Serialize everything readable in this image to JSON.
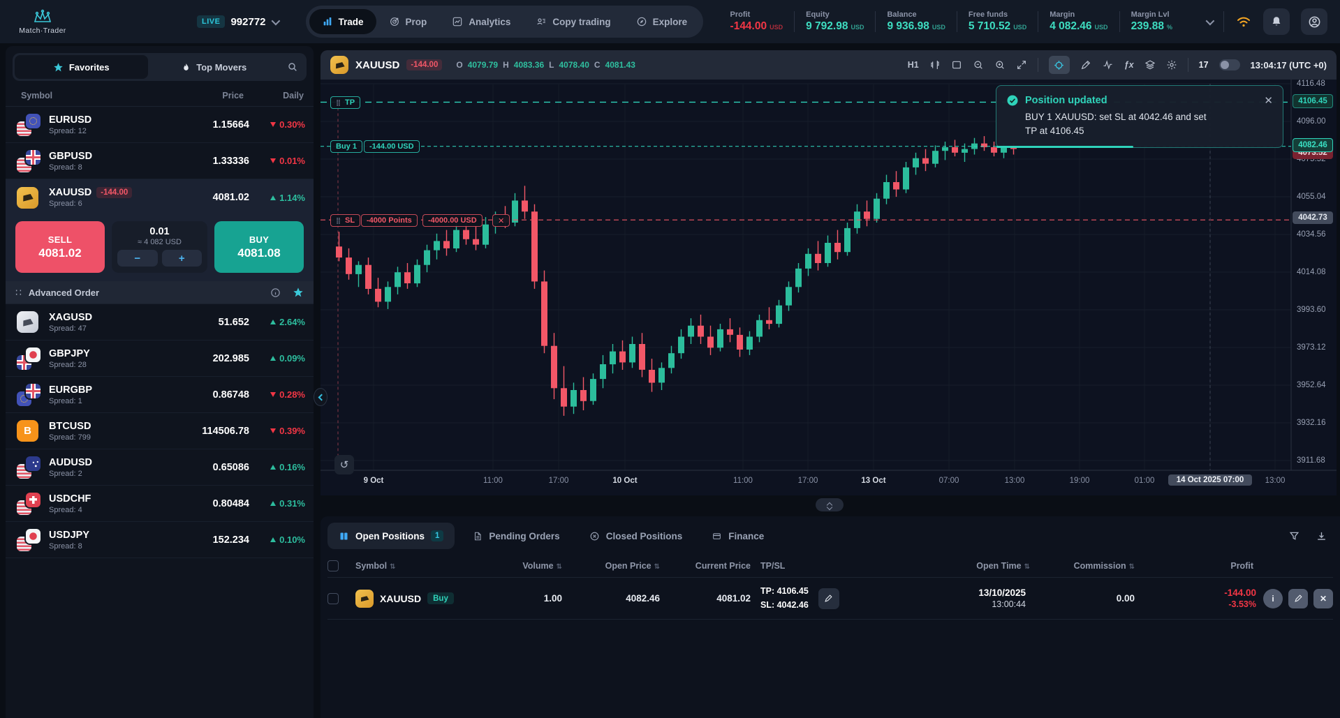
{
  "colors": {
    "positive": "#2fd3ba",
    "negative": "#f23645",
    "accent_cyan": "#35bfe0",
    "buy_button": "#17a392",
    "sell_button": "#ee5168",
    "candle_up": "#2cbd9c",
    "candle_down": "#f25767"
  },
  "header": {
    "brand": "Match·Trader",
    "live_badge": "LIVE",
    "account_number": "992772",
    "nav": [
      {
        "label": "Trade",
        "icon": "trade-bars-icon",
        "active": true
      },
      {
        "label": "Prop",
        "icon": "target-icon",
        "active": false
      },
      {
        "label": "Analytics",
        "icon": "analytics-icon",
        "active": false
      },
      {
        "label": "Copy trading",
        "icon": "copy-icon",
        "active": false
      },
      {
        "label": "Explore",
        "icon": "compass-icon",
        "active": false
      }
    ],
    "stats": [
      {
        "label": "Profit",
        "value": "-144.00",
        "unit": "USD",
        "tone": "neg"
      },
      {
        "label": "Equity",
        "value": "9 792.98",
        "unit": "USD",
        "tone": "pos"
      },
      {
        "label": "Balance",
        "value": "9 936.98",
        "unit": "USD",
        "tone": "pos"
      },
      {
        "label": "Free funds",
        "value": "5 710.52",
        "unit": "USD",
        "tone": "pos"
      },
      {
        "label": "Margin",
        "value": "4 082.46",
        "unit": "USD",
        "tone": "pos"
      },
      {
        "label": "Margin Lvl",
        "value": "239.88",
        "unit": "%",
        "tone": "pos"
      }
    ]
  },
  "watchlist": {
    "tabs": [
      {
        "label": "Favorites",
        "active": true
      },
      {
        "label": "Top Movers",
        "active": false
      }
    ],
    "columns": [
      "Symbol",
      "Price",
      "Daily"
    ],
    "rows": [
      {
        "symbol": "EURUSD",
        "spread": "Spread: 12",
        "price": "1.15664",
        "daily": "0.30%",
        "dir": "down",
        "icon": "eu-us"
      },
      {
        "symbol": "GBPUSD",
        "spread": "Spread: 8",
        "price": "1.33336",
        "daily": "0.01%",
        "dir": "down",
        "icon": "gb-us"
      },
      {
        "symbol": "XAUUSD",
        "spread": "Spread: 6",
        "price": "4081.02",
        "daily": "1.14%",
        "dir": "up",
        "icon": "gold",
        "pl_badge": "-144.00",
        "selected": true
      },
      {
        "symbol": "XAGUSD",
        "spread": "Spread: 47",
        "price": "51.652",
        "daily": "2.64%",
        "dir": "up",
        "icon": "silver"
      },
      {
        "symbol": "GBPJPY",
        "spread": "Spread: 28",
        "price": "202.985",
        "daily": "0.09%",
        "dir": "up",
        "icon": "jp-gb"
      },
      {
        "symbol": "EURGBP",
        "spread": "Spread: 1",
        "price": "0.86748",
        "daily": "0.28%",
        "dir": "down",
        "icon": "gb-eu"
      },
      {
        "symbol": "BTCUSD",
        "spread": "Spread: 799",
        "price": "114506.78",
        "daily": "0.39%",
        "dir": "down",
        "icon": "btc"
      },
      {
        "symbol": "AUDUSD",
        "spread": "Spread: 2",
        "price": "0.65086",
        "daily": "0.16%",
        "dir": "up",
        "icon": "au-us"
      },
      {
        "symbol": "USDCHF",
        "spread": "Spread: 4",
        "price": "0.80484",
        "daily": "0.31%",
        "dir": "up",
        "icon": "ch-us"
      },
      {
        "symbol": "USDJPY",
        "spread": "Spread: 8",
        "price": "152.234",
        "daily": "0.10%",
        "dir": "up",
        "icon": "jp-us"
      }
    ],
    "trade_box": {
      "sell_label": "SELL",
      "sell_price": "4081.02",
      "volume": "0.01",
      "notional": "≈ 4 082 USD",
      "buy_label": "BUY",
      "buy_price": "4081.08",
      "advanced_label": "Advanced Order"
    }
  },
  "chart": {
    "symbol": "XAUUSD",
    "pl_badge": "-144.00",
    "ohlc": {
      "o_label": "O",
      "o": "4079.79",
      "h_label": "H",
      "h": "4083.36",
      "l_label": "L",
      "l": "4078.40",
      "c_label": "C",
      "c": "4081.43"
    },
    "timeframe": "H1",
    "clock": "13:04:17 (UTC +0)",
    "toast": {
      "title": "Position updated",
      "line1": "BUY 1 XAUUSD: set SL at 4042.46 and set",
      "line2": "TP at 4106.45"
    },
    "tags": {
      "tp": "TP",
      "buy": "Buy 1",
      "buy_pl": "-144.00 USD",
      "sl": "SL",
      "sl_points": "-4000 Points",
      "sl_usd": "-4000.00 USD"
    },
    "badges": {
      "tp": "4106.45",
      "price": "4082.46",
      "price_hidden": "4073.52",
      "sl": "4042.73"
    }
  },
  "chart_data": {
    "type": "candlestick",
    "symbol": "XAUUSD",
    "timeframe": "H1",
    "ohlc_readout": {
      "open": 4079.79,
      "high": 4083.36,
      "low": 4078.4,
      "close": 4081.43
    },
    "ylim": [
      3911.68,
      4116.48
    ],
    "grid": true,
    "price_ticks": [
      4116.48,
      4096.0,
      4075.52,
      4055.04,
      4034.56,
      4014.08,
      3993.6,
      3973.12,
      3952.64,
      3932.16,
      3911.68
    ],
    "time_ticks": [
      {
        "label": "9 Oct",
        "date": true,
        "x": 76
      },
      {
        "label": "11:00",
        "x": 247
      },
      {
        "label": "17:00",
        "x": 341
      },
      {
        "label": "10 Oct",
        "date": true,
        "x": 436
      },
      {
        "label": "11:00",
        "x": 605
      },
      {
        "label": "17:00",
        "x": 698
      },
      {
        "label": "13 Oct",
        "date": true,
        "x": 792
      },
      {
        "label": "07:00",
        "x": 900
      },
      {
        "label": "13:00",
        "x": 994
      },
      {
        "label": "19:00",
        "x": 1087
      },
      {
        "label": "01:00",
        "x": 1180
      },
      {
        "label": "14 Oct 2025 07:00",
        "highlight": true,
        "x": 1274
      },
      {
        "label": "13:00",
        "x": 1367
      }
    ],
    "levels": {
      "tp": 4106.45,
      "entry": 4082.46,
      "sl": 4042.46,
      "sl_axis": 4042.73
    },
    "candles": [
      [
        4028,
        4036,
        4020,
        4022
      ],
      [
        4022,
        4027,
        4010,
        4013
      ],
      [
        4013,
        4020,
        4006,
        4018
      ],
      [
        4018,
        4022,
        4002,
        4005
      ],
      [
        4005,
        4011,
        3995,
        3998
      ],
      [
        3998,
        4009,
        3994,
        4006
      ],
      [
        4006,
        4017,
        4002,
        4014
      ],
      [
        4014,
        4019,
        4005,
        4008
      ],
      [
        4008,
        4021,
        4006,
        4018
      ],
      [
        4018,
        4029,
        4014,
        4026
      ],
      [
        4026,
        4035,
        4021,
        4031
      ],
      [
        4031,
        4037,
        4023,
        4027
      ],
      [
        4027,
        4041,
        4025,
        4037
      ],
      [
        4037,
        4043,
        4029,
        4032
      ],
      [
        4032,
        4039,
        4026,
        4029
      ],
      [
        4029,
        4044,
        4027,
        4040
      ],
      [
        4040,
        4047,
        4035,
        4044
      ],
      [
        4044,
        4050,
        4038,
        4041
      ],
      [
        4041,
        4057,
        4039,
        4053
      ],
      [
        4053,
        4061,
        4043,
        4047
      ],
      [
        4047,
        4051,
        4005,
        4009
      ],
      [
        4009,
        4015,
        3970,
        3974
      ],
      [
        3974,
        3981,
        3945,
        3951
      ],
      [
        3951,
        3963,
        3936,
        3941
      ],
      [
        3941,
        3954,
        3937,
        3950
      ],
      [
        3950,
        3957,
        3939,
        3944
      ],
      [
        3944,
        3959,
        3942,
        3956
      ],
      [
        3956,
        3969,
        3951,
        3964
      ],
      [
        3964,
        3975,
        3959,
        3971
      ],
      [
        3971,
        3977,
        3961,
        3965
      ],
      [
        3965,
        3979,
        3962,
        3975
      ],
      [
        3975,
        3981,
        3957,
        3961
      ],
      [
        3961,
        3967,
        3949,
        3954
      ],
      [
        3954,
        3965,
        3950,
        3962
      ],
      [
        3962,
        3974,
        3959,
        3970
      ],
      [
        3970,
        3983,
        3967,
        3979
      ],
      [
        3979,
        3989,
        3975,
        3985
      ],
      [
        3985,
        3991,
        3975,
        3979
      ],
      [
        3979,
        3985,
        3969,
        3973
      ],
      [
        3973,
        3986,
        3971,
        3983
      ],
      [
        3983,
        3989,
        3976,
        3980
      ],
      [
        3980,
        3984,
        3968,
        3972
      ],
      [
        3972,
        3982,
        3969,
        3979
      ],
      [
        3979,
        3991,
        3976,
        3988
      ],
      [
        3988,
        3995,
        3983,
        3986
      ],
      [
        3986,
        3999,
        3984,
        3996
      ],
      [
        3996,
        4009,
        3993,
        4006
      ],
      [
        4006,
        4019,
        4003,
        4016
      ],
      [
        4016,
        4027,
        4012,
        4024
      ],
      [
        4024,
        4031,
        4015,
        4019
      ],
      [
        4019,
        4034,
        4017,
        4030
      ],
      [
        4030,
        4037,
        4021,
        4025
      ],
      [
        4025,
        4041,
        4023,
        4038
      ],
      [
        4038,
        4051,
        4035,
        4047
      ],
      [
        4047,
        4053,
        4039,
        4043
      ],
      [
        4043,
        4057,
        4041,
        4054
      ],
      [
        4054,
        4067,
        4051,
        4063
      ],
      [
        4063,
        4069,
        4055,
        4059
      ],
      [
        4059,
        4074,
        4057,
        4071
      ],
      [
        4071,
        4079,
        4067,
        4076
      ],
      [
        4076,
        4081,
        4069,
        4073
      ],
      [
        4073,
        4083,
        4071,
        4080
      ],
      [
        4080,
        4085,
        4075,
        4082
      ],
      [
        4082,
        4086,
        4077,
        4079
      ],
      [
        4079,
        4084,
        4074,
        4081
      ],
      [
        4081,
        4087,
        4078,
        4084
      ],
      [
        4084,
        4088,
        4080,
        4082
      ],
      [
        4082,
        4085,
        4077,
        4079
      ],
      [
        4079,
        4084,
        4076,
        4082
      ],
      [
        4082,
        4084,
        4078,
        4081
      ]
    ]
  },
  "positions": {
    "tabs": [
      {
        "label": "Open Positions",
        "count": "1",
        "active": true,
        "icon": "open-positions-icon"
      },
      {
        "label": "Pending Orders",
        "active": false,
        "icon": "pending-orders-icon"
      },
      {
        "label": "Closed Positions",
        "active": false,
        "icon": "closed-positions-icon"
      },
      {
        "label": "Finance",
        "active": false,
        "icon": "finance-icon"
      }
    ],
    "columns": [
      {
        "label": "Symbol",
        "sortable": true
      },
      {
        "label": "Volume",
        "sortable": true,
        "align": "right"
      },
      {
        "label": "Open Price",
        "sortable": true,
        "align": "right"
      },
      {
        "label": "Current Price",
        "align": "right"
      },
      {
        "label": "TP/SL"
      },
      {
        "label": "Open Time",
        "sortable": true,
        "align": "right"
      },
      {
        "label": "Commission",
        "sortable": true,
        "align": "right"
      },
      {
        "label": "Profit",
        "align": "right"
      }
    ],
    "row": {
      "symbol": "XAUUSD",
      "side": "Buy",
      "volume": "1.00",
      "open_price": "4082.46",
      "current_price": "4081.02",
      "tp": "TP: 4106.45",
      "sl": "SL: 4042.46",
      "open_date": "13/10/2025",
      "open_time": "13:00:44",
      "commission": "0.00",
      "profit": "-144.00",
      "profit_pct": "-3.53%"
    }
  }
}
